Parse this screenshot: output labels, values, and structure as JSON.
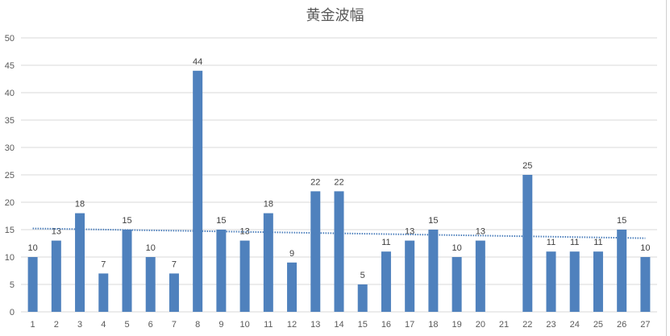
{
  "chart_data": {
    "type": "bar",
    "title": "黄金波幅",
    "categories": [
      "1",
      "2",
      "3",
      "4",
      "5",
      "6",
      "7",
      "8",
      "9",
      "10",
      "11",
      "12",
      "13",
      "14",
      "15",
      "16",
      "17",
      "18",
      "19",
      "20",
      "21",
      "22",
      "23",
      "24",
      "25",
      "26",
      "27"
    ],
    "values": [
      10,
      13,
      18,
      7,
      15,
      10,
      7,
      44,
      15,
      13,
      18,
      9,
      22,
      22,
      5,
      11,
      13,
      15,
      10,
      13,
      null,
      25,
      11,
      11,
      11,
      15,
      10
    ],
    "ylim": [
      0,
      50
    ],
    "yticks": [
      0,
      5,
      10,
      15,
      20,
      25,
      30,
      35,
      40,
      45,
      50
    ],
    "grid": true,
    "data_labels": true,
    "trendline": {
      "type": "linear",
      "style": "dotted"
    },
    "colors": {
      "bar": "#4f81bd",
      "trendline": "#4f81bd",
      "grid": "#d9d9d9"
    }
  }
}
